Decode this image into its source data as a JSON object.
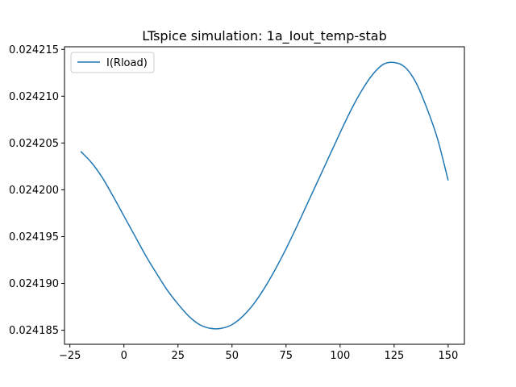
{
  "chart_data": {
    "type": "line",
    "title": "LTspice simulation: 1a_Iout_temp-stab",
    "xlabel": "",
    "ylabel": "",
    "xlim": [
      -27.5,
      157.5
    ],
    "ylim": [
      0.0241835,
      0.02421528
    ],
    "xticks": [
      -25,
      0,
      25,
      50,
      75,
      100,
      125,
      150
    ],
    "xtick_labels": [
      "−25",
      "0",
      "25",
      "50",
      "75",
      "100",
      "125",
      "150"
    ],
    "yticks": [
      0.024185,
      0.02419,
      0.024195,
      0.0242,
      0.024205,
      0.02421,
      0.024215
    ],
    "ytick_labels": [
      "0.024185",
      "0.024190",
      "0.024195",
      "0.024200",
      "0.024205",
      "0.024210",
      "0.024215"
    ],
    "grid": false,
    "legend_position": "top-left",
    "series": [
      {
        "name": "I(Rload)",
        "color": "#1f77b4",
        "x": [
          -20,
          -15,
          -10,
          -5,
          0,
          5,
          10,
          15,
          20,
          25,
          30,
          35,
          40,
          45,
          50,
          55,
          60,
          65,
          70,
          75,
          80,
          85,
          90,
          95,
          100,
          105,
          110,
          115,
          120,
          125,
          130,
          135,
          140,
          145,
          150
        ],
        "y": [
          0.0242041,
          0.0242029,
          0.0242013,
          0.0241993,
          0.0241972,
          0.0241951,
          0.024193,
          0.0241911,
          0.0241893,
          0.0241878,
          0.0241865,
          0.0241856,
          0.0241852,
          0.0241852,
          0.0241856,
          0.0241865,
          0.0241878,
          0.0241895,
          0.0241915,
          0.0241937,
          0.0241961,
          0.0241986,
          0.0242011,
          0.0242036,
          0.0242061,
          0.0242085,
          0.0242106,
          0.0242123,
          0.0242134,
          0.0242136,
          0.0242131,
          0.0242115,
          0.0242088,
          0.0242055,
          0.024201
        ]
      }
    ]
  }
}
